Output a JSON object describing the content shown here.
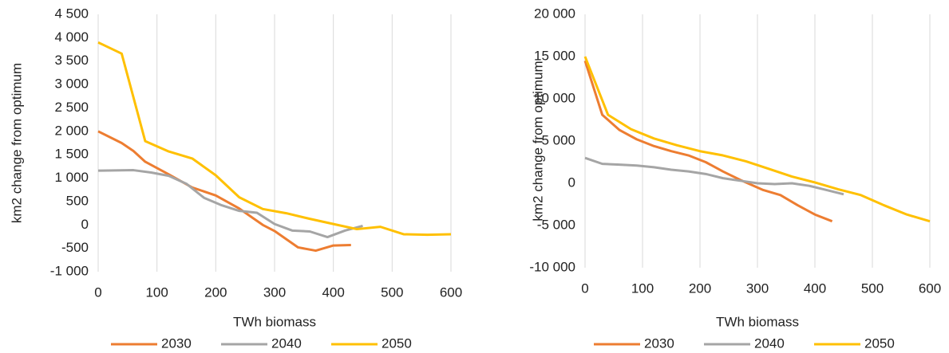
{
  "chart_data": [
    {
      "type": "line",
      "x_label": "TWh biomass",
      "y_label": "km2 change from optimum",
      "xlim": [
        0,
        600
      ],
      "xticks": [
        0,
        100,
        200,
        300,
        400,
        500,
        600
      ],
      "ylim": [
        -1000,
        4500
      ],
      "yticks": [
        {
          "value": -1000,
          "label": "-1 000"
        },
        -500,
        0,
        500,
        {
          "value": 1000,
          "label": "1 000"
        },
        {
          "value": 1500,
          "label": "1 500"
        },
        {
          "value": 2000,
          "label": "2 000"
        },
        {
          "value": 2500,
          "label": "2 500"
        },
        {
          "value": 3000,
          "label": "3 000"
        },
        {
          "value": 3500,
          "label": "3 500"
        },
        {
          "value": 4000,
          "label": "4 000"
        },
        {
          "value": 4500,
          "label": "4 500"
        }
      ],
      "grid": true,
      "legend": "bottom",
      "series": [
        {
          "name": "2030",
          "color": "#ed7d31",
          "x": [
            0,
            40,
            60,
            80,
            120,
            160,
            200,
            240,
            280,
            300,
            340,
            370,
            400,
            430
          ],
          "values": [
            2000,
            1750,
            1580,
            1350,
            1080,
            800,
            630,
            350,
            0,
            -130,
            -480,
            -550,
            -440,
            -430
          ]
        },
        {
          "name": "2040",
          "color": "#a5a5a5",
          "x": [
            0,
            60,
            90,
            120,
            150,
            180,
            210,
            240,
            270,
            300,
            330,
            360,
            390,
            420,
            450
          ],
          "values": [
            1160,
            1170,
            1120,
            1050,
            880,
            580,
            420,
            300,
            260,
            20,
            -120,
            -140,
            -260,
            -120,
            -20
          ]
        },
        {
          "name": "2050",
          "color": "#ffc000",
          "x": [
            0,
            40,
            80,
            120,
            160,
            200,
            240,
            280,
            320,
            360,
            400,
            440,
            480,
            520,
            560,
            600
          ],
          "values": [
            3900,
            3660,
            1790,
            1570,
            1420,
            1060,
            590,
            340,
            250,
            130,
            20,
            -90,
            -40,
            -200,
            -210,
            -200
          ]
        }
      ]
    },
    {
      "type": "line",
      "x_label": "TWh biomass",
      "y_label": "km2 change from optimum",
      "xlim": [
        0,
        600
      ],
      "xticks": [
        0,
        100,
        200,
        300,
        400,
        500,
        600
      ],
      "ylim": [
        -10000,
        20000
      ],
      "yticks": [
        {
          "value": -10000,
          "label": "-10 000"
        },
        {
          "value": -5000,
          "label": "-5 000"
        },
        0,
        {
          "value": 5000,
          "label": "5 000"
        },
        {
          "value": 10000,
          "label": "10 000"
        },
        {
          "value": 15000,
          "label": "15 000"
        },
        {
          "value": 20000,
          "label": "20 000"
        }
      ],
      "grid": true,
      "legend": "bottom",
      "series": [
        {
          "name": "2030",
          "color": "#ed7d31",
          "x": [
            0,
            30,
            60,
            90,
            120,
            150,
            180,
            210,
            240,
            270,
            310,
            340,
            370,
            400,
            430
          ],
          "values": [
            14500,
            8100,
            6300,
            5200,
            4400,
            3800,
            3300,
            2500,
            1400,
            400,
            -800,
            -1400,
            -2600,
            -3700,
            -4500
          ]
        },
        {
          "name": "2040",
          "color": "#a5a5a5",
          "x": [
            0,
            30,
            60,
            90,
            120,
            150,
            180,
            210,
            240,
            270,
            300,
            330,
            360,
            390,
            420,
            450
          ],
          "values": [
            3000,
            2300,
            2200,
            2100,
            1900,
            1600,
            1400,
            1100,
            600,
            300,
            0,
            -100,
            0,
            -300,
            -800,
            -1300
          ]
        },
        {
          "name": "2050",
          "color": "#ffc000",
          "x": [
            0,
            40,
            80,
            120,
            160,
            200,
            240,
            280,
            320,
            360,
            400,
            440,
            480,
            520,
            560,
            600
          ],
          "values": [
            15000,
            8100,
            6400,
            5300,
            4500,
            3800,
            3300,
            2600,
            1700,
            800,
            100,
            -700,
            -1400,
            -2600,
            -3700,
            -4500
          ]
        }
      ]
    }
  ]
}
